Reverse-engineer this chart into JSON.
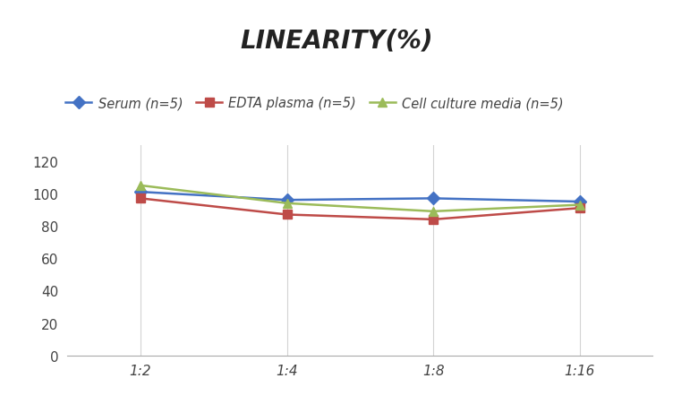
{
  "title": "LINEARITY(%)",
  "x_labels": [
    "1:2",
    "1:4",
    "1:8",
    "1:16"
  ],
  "x_positions": [
    0,
    1,
    2,
    3
  ],
  "series": [
    {
      "label": "Serum (n=5)",
      "color": "#4472C4",
      "marker": "D",
      "values": [
        101,
        96,
        97,
        95
      ]
    },
    {
      "label": "EDTA plasma (n=5)",
      "color": "#BE4B48",
      "marker": "s",
      "values": [
        97,
        87,
        84,
        91
      ]
    },
    {
      "label": "Cell culture media (n=5)",
      "color": "#9BBB59",
      "marker": "^",
      "values": [
        105,
        94,
        89,
        93
      ]
    }
  ],
  "ylim": [
    0,
    130
  ],
  "yticks": [
    0,
    20,
    40,
    60,
    80,
    100,
    120
  ],
  "background_color": "#ffffff",
  "grid_color": "#d3d3d3",
  "title_fontsize": 20,
  "legend_fontsize": 10.5,
  "tick_fontsize": 11
}
